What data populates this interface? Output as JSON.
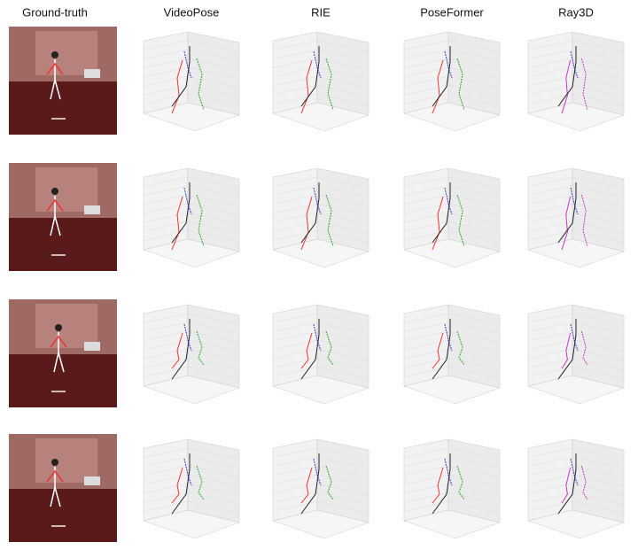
{
  "columns": [
    "Ground-truth",
    "VideoPose",
    "RIE",
    "PoseFormer",
    "Ray3D"
  ]
}
